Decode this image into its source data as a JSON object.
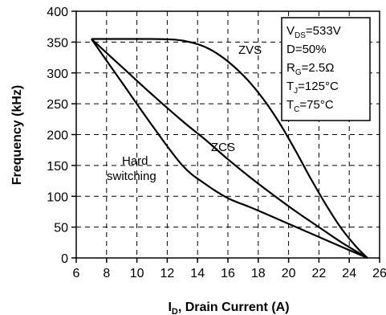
{
  "chart_data": {
    "type": "line",
    "xlabel_main": "I",
    "xlabel_sub": "D",
    "xlabel_rest": ", Drain Current (A)",
    "ylabel": "Frequency (kHz)",
    "xlim": [
      6,
      26
    ],
    "ylim": [
      0,
      400
    ],
    "xticks": [
      6,
      8,
      10,
      12,
      14,
      16,
      18,
      20,
      22,
      24,
      26
    ],
    "yticks": [
      0,
      50,
      100,
      150,
      200,
      250,
      300,
      350,
      400
    ],
    "grid": true,
    "series": [
      {
        "name": "ZVS",
        "x": [
          7,
          9,
          11,
          12.5,
          13.5,
          14.5,
          15.5,
          16.5,
          17.5,
          18.5,
          19.5,
          20.5,
          21.5,
          22.5,
          23.5,
          24.5,
          25.2
        ],
        "y": [
          355,
          355,
          355,
          354,
          350,
          342,
          328,
          308,
          283,
          252,
          215,
          172,
          127,
          85,
          47,
          17,
          0
        ]
      },
      {
        "name": "ZCS",
        "x": [
          7,
          9,
          11,
          13,
          14.5,
          16,
          17.5,
          19,
          20.5,
          22,
          23.5,
          25.2
        ],
        "y": [
          355,
          310,
          265,
          222,
          192,
          160,
          130,
          102,
          75,
          50,
          25,
          0
        ]
      },
      {
        "name": "Hard switching",
        "x": [
          7,
          9,
          11,
          13,
          14.5,
          16,
          17.5,
          19,
          20.5,
          22,
          23.5,
          25.2
        ],
        "y": [
          355,
          285,
          215,
          150,
          120,
          97,
          82,
          66,
          50,
          34,
          18,
          0
        ]
      }
    ],
    "annotations": {
      "zvs": "ZVS",
      "zcs": "ZCS",
      "hard_line1": "Hard",
      "hard_line2": "switching"
    },
    "conditions": [
      {
        "main": "V",
        "sub": "DS",
        "rest": "=533V"
      },
      {
        "main": "D=50%",
        "sub": "",
        "rest": ""
      },
      {
        "main": "R",
        "sub": "G",
        "rest": "=2.5Ω"
      },
      {
        "main": "T",
        "sub": "J",
        "rest": "=125°C"
      },
      {
        "main": "T",
        "sub": "C",
        "rest": "=75°C"
      }
    ]
  }
}
